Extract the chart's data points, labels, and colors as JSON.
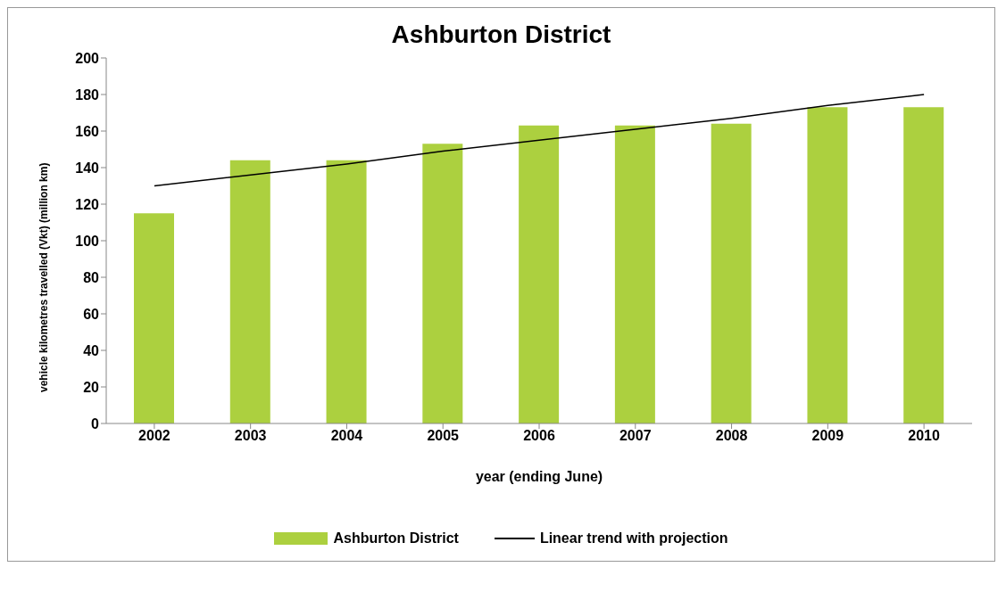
{
  "chart_data": {
    "type": "bar",
    "title": "Ashburton District",
    "xlabel": "year (ending June)",
    "ylabel": "vehicle kilometres travelled (Vkt) (million km)",
    "categories": [
      "2002",
      "2003",
      "2004",
      "2005",
      "2006",
      "2007",
      "2008",
      "2009",
      "2010"
    ],
    "series": [
      {
        "name": "Ashburton District",
        "color": "#acd03f",
        "values": [
          115,
          144,
          144,
          153,
          163,
          163,
          164,
          173,
          173
        ]
      },
      {
        "name": "Linear trend with projection",
        "type": "line",
        "color": "#000000",
        "values": [
          130,
          136,
          142,
          149,
          155,
          161,
          167,
          174,
          180
        ],
        "marker": "none"
      }
    ],
    "ylim": [
      0,
      200
    ],
    "yticks": [
      0,
      20,
      40,
      60,
      80,
      100,
      120,
      140,
      160,
      180,
      200
    ],
    "grid": false,
    "legend": "bottom"
  }
}
